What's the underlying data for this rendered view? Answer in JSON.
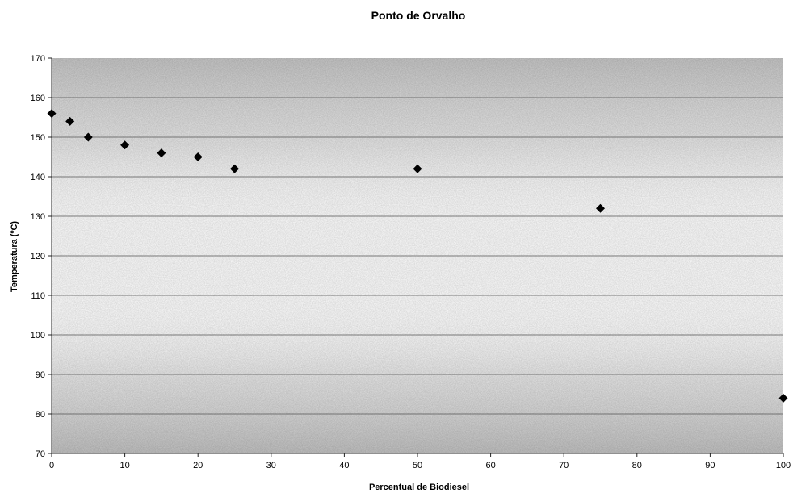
{
  "chart_data": {
    "type": "scatter",
    "title": "Ponto de Orvalho",
    "xlabel": "Percentual de Biodiesel",
    "ylabel": "Temperatura (ºC)",
    "xlim": [
      0,
      100
    ],
    "ylim": [
      70,
      170
    ],
    "x_ticks": [
      "0",
      "10",
      "20",
      "30",
      "40",
      "50",
      "60",
      "70",
      "80",
      "90",
      "100"
    ],
    "y_ticks": [
      "70",
      "80",
      "90",
      "100",
      "110",
      "120",
      "130",
      "140",
      "150",
      "160",
      "170"
    ],
    "grid": true,
    "legend": "none",
    "marker": "diamond",
    "marker_color": "#000000",
    "series": [
      {
        "points": [
          {
            "x": 0,
            "y": 156
          },
          {
            "x": 2.5,
            "y": 154
          },
          {
            "x": 5,
            "y": 150
          },
          {
            "x": 10,
            "y": 148
          },
          {
            "x": 15,
            "y": 146
          },
          {
            "x": 20,
            "y": 145
          },
          {
            "x": 25,
            "y": 142
          },
          {
            "x": 50,
            "y": 142
          },
          {
            "x": 75,
            "y": 132
          },
          {
            "x": 100,
            "y": 84
          }
        ]
      }
    ]
  }
}
